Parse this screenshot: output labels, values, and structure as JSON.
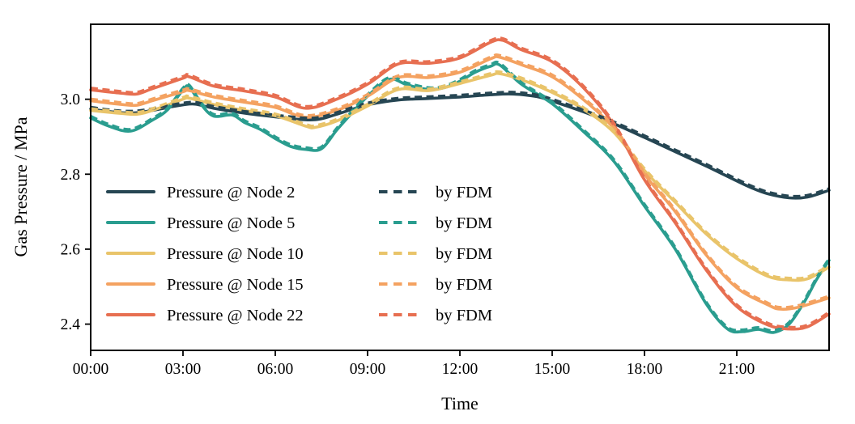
{
  "chart_data": {
    "type": "line",
    "title": "",
    "xlabel": "Time",
    "ylabel": "Gas Pressure / MPa",
    "xlim_hours": [
      0,
      24
    ],
    "ylim": [
      2.33,
      3.2
    ],
    "grid": false,
    "axis_color": "#000000",
    "background_color": "#ffffff",
    "legend_position": "lower left, two columns, no frame",
    "x_ticks": [
      {
        "hour": 0,
        "label": "00:00"
      },
      {
        "hour": 3,
        "label": "03:00"
      },
      {
        "hour": 6,
        "label": "06:00"
      },
      {
        "hour": 9,
        "label": "09:00"
      },
      {
        "hour": 12,
        "label": "12:00"
      },
      {
        "hour": 15,
        "label": "15:00"
      },
      {
        "hour": 18,
        "label": "18:00"
      },
      {
        "hour": 21,
        "label": "21:00"
      }
    ],
    "y_ticks": [
      {
        "value": 2.4,
        "label": "2.4"
      },
      {
        "value": 2.6,
        "label": "2.6"
      },
      {
        "value": 2.8,
        "label": "2.8"
      },
      {
        "value": 3.0,
        "label": "3.0"
      }
    ],
    "series": [
      {
        "name": "Pressure @ Node 2",
        "color": "#264653",
        "style": "solid",
        "fdm_label": "by FDM",
        "fdm_style": "dashed",
        "fdm_offset_mpa": 0.005,
        "points_time_hours_value_mpa": [
          [
            0,
            2.974
          ],
          [
            0.5,
            2.968
          ],
          [
            1,
            2.964
          ],
          [
            1.5,
            2.964
          ],
          [
            2,
            2.97
          ],
          [
            2.5,
            2.978
          ],
          [
            3,
            2.985
          ],
          [
            3.4,
            2.987
          ],
          [
            4,
            2.976
          ],
          [
            5,
            2.963
          ],
          [
            6,
            2.953
          ],
          [
            7,
            2.945
          ],
          [
            7.5,
            2.948
          ],
          [
            8,
            2.96
          ],
          [
            9,
            2.985
          ],
          [
            10,
            2.998
          ],
          [
            11,
            3.002
          ],
          [
            12,
            3.006
          ],
          [
            13,
            3.012
          ],
          [
            13.7,
            3.014
          ],
          [
            14.5,
            3.007
          ],
          [
            15,
            2.995
          ],
          [
            16,
            2.967
          ],
          [
            17,
            2.935
          ],
          [
            18,
            2.898
          ],
          [
            19,
            2.86
          ],
          [
            20,
            2.822
          ],
          [
            21,
            2.782
          ],
          [
            21.5,
            2.763
          ],
          [
            22,
            2.748
          ],
          [
            22.7,
            2.737
          ],
          [
            23.3,
            2.739
          ],
          [
            24,
            2.757
          ]
        ]
      },
      {
        "name": "Pressure @ Node 5",
        "color": "#2a9d8f",
        "style": "solid",
        "fdm_label": "by FDM",
        "fdm_style": "dashed",
        "fdm_offset_mpa": 0.005,
        "points_time_hours_value_mpa": [
          [
            0,
            2.95
          ],
          [
            0.6,
            2.928
          ],
          [
            1.3,
            2.915
          ],
          [
            2,
            2.944
          ],
          [
            2.5,
            2.972
          ],
          [
            3,
            3.025
          ],
          [
            3.2,
            3.033
          ],
          [
            3.6,
            2.985
          ],
          [
            4,
            2.955
          ],
          [
            4.6,
            2.958
          ],
          [
            5,
            2.938
          ],
          [
            5.5,
            2.92
          ],
          [
            6,
            2.895
          ],
          [
            6.5,
            2.874
          ],
          [
            7,
            2.866
          ],
          [
            7.5,
            2.868
          ],
          [
            8,
            2.918
          ],
          [
            8.5,
            2.964
          ],
          [
            9,
            3.008
          ],
          [
            9.7,
            3.053
          ],
          [
            10.3,
            3.038
          ],
          [
            11,
            3.026
          ],
          [
            11.5,
            3.031
          ],
          [
            12,
            3.048
          ],
          [
            12.5,
            3.072
          ],
          [
            13,
            3.088
          ],
          [
            13.3,
            3.091
          ],
          [
            14,
            3.04
          ],
          [
            15,
            2.988
          ],
          [
            16,
            2.915
          ],
          [
            17,
            2.835
          ],
          [
            18,
            2.715
          ],
          [
            19,
            2.6
          ],
          [
            20,
            2.455
          ],
          [
            20.7,
            2.387
          ],
          [
            21.2,
            2.38
          ],
          [
            21.7,
            2.386
          ],
          [
            22.2,
            2.378
          ],
          [
            22.7,
            2.4
          ],
          [
            23.2,
            2.46
          ],
          [
            23.6,
            2.52
          ],
          [
            24,
            2.57
          ]
        ]
      },
      {
        "name": "Pressure @ Node 10",
        "color": "#e9c46a",
        "style": "solid",
        "fdm_label": "by FDM",
        "fdm_style": "dashed",
        "fdm_offset_mpa": 0.005,
        "points_time_hours_value_mpa": [
          [
            0,
            2.97
          ],
          [
            1,
            2.962
          ],
          [
            1.5,
            2.96
          ],
          [
            2,
            2.97
          ],
          [
            3,
            3.0
          ],
          [
            3.2,
            3.003
          ],
          [
            4,
            2.986
          ],
          [
            5,
            2.97
          ],
          [
            6,
            2.956
          ],
          [
            7,
            2.928
          ],
          [
            7.3,
            2.925
          ],
          [
            8,
            2.942
          ],
          [
            9,
            2.982
          ],
          [
            10,
            3.026
          ],
          [
            11,
            3.023
          ],
          [
            12,
            3.042
          ],
          [
            13,
            3.064
          ],
          [
            13.3,
            3.068
          ],
          [
            14,
            3.052
          ],
          [
            15,
            3.018
          ],
          [
            16,
            2.974
          ],
          [
            17,
            2.912
          ],
          [
            18,
            2.81
          ],
          [
            19,
            2.725
          ],
          [
            20,
            2.641
          ],
          [
            21,
            2.575
          ],
          [
            22,
            2.528
          ],
          [
            22.7,
            2.518
          ],
          [
            23.3,
            2.521
          ],
          [
            24,
            2.552
          ]
        ]
      },
      {
        "name": "Pressure @ Node 15",
        "color": "#f4a261",
        "style": "solid",
        "fdm_label": "by FDM",
        "fdm_style": "dashed",
        "fdm_offset_mpa": 0.005,
        "points_time_hours_value_mpa": [
          [
            0,
            2.996
          ],
          [
            1,
            2.986
          ],
          [
            1.5,
            2.984
          ],
          [
            2,
            2.996
          ],
          [
            3,
            3.02
          ],
          [
            3.2,
            3.023
          ],
          [
            4,
            3.006
          ],
          [
            5,
            2.992
          ],
          [
            6,
            2.978
          ],
          [
            7,
            2.952
          ],
          [
            8,
            2.97
          ],
          [
            9,
            3.008
          ],
          [
            10,
            3.058
          ],
          [
            11,
            3.058
          ],
          [
            12,
            3.072
          ],
          [
            13,
            3.108
          ],
          [
            13.3,
            3.112
          ],
          [
            14,
            3.092
          ],
          [
            15,
            3.06
          ],
          [
            16,
            3.0
          ],
          [
            17,
            2.922
          ],
          [
            18,
            2.8
          ],
          [
            19,
            2.7
          ],
          [
            20,
            2.585
          ],
          [
            21,
            2.497
          ],
          [
            22,
            2.452
          ],
          [
            22.4,
            2.44
          ],
          [
            23,
            2.445
          ],
          [
            24,
            2.47
          ]
        ]
      },
      {
        "name": "Pressure @ Node 22",
        "color": "#e76f51",
        "style": "solid",
        "fdm_label": "by FDM",
        "fdm_style": "dashed",
        "fdm_offset_mpa": 0.005,
        "points_time_hours_value_mpa": [
          [
            0,
            3.025
          ],
          [
            1,
            3.016
          ],
          [
            1.5,
            3.014
          ],
          [
            2,
            3.028
          ],
          [
            3,
            3.056
          ],
          [
            3.2,
            3.06
          ],
          [
            4,
            3.035
          ],
          [
            5,
            3.022
          ],
          [
            6,
            3.006
          ],
          [
            7,
            2.976
          ],
          [
            8,
            3.0
          ],
          [
            9,
            3.04
          ],
          [
            10,
            3.094
          ],
          [
            11,
            3.096
          ],
          [
            12,
            3.11
          ],
          [
            13,
            3.152
          ],
          [
            13.4,
            3.157
          ],
          [
            14,
            3.132
          ],
          [
            15,
            3.1
          ],
          [
            16,
            3.032
          ],
          [
            17,
            2.932
          ],
          [
            18,
            2.785
          ],
          [
            19,
            2.67
          ],
          [
            20,
            2.545
          ],
          [
            21,
            2.447
          ],
          [
            22,
            2.398
          ],
          [
            22.7,
            2.387
          ],
          [
            23.3,
            2.393
          ],
          [
            24,
            2.427
          ]
        ]
      }
    ]
  }
}
